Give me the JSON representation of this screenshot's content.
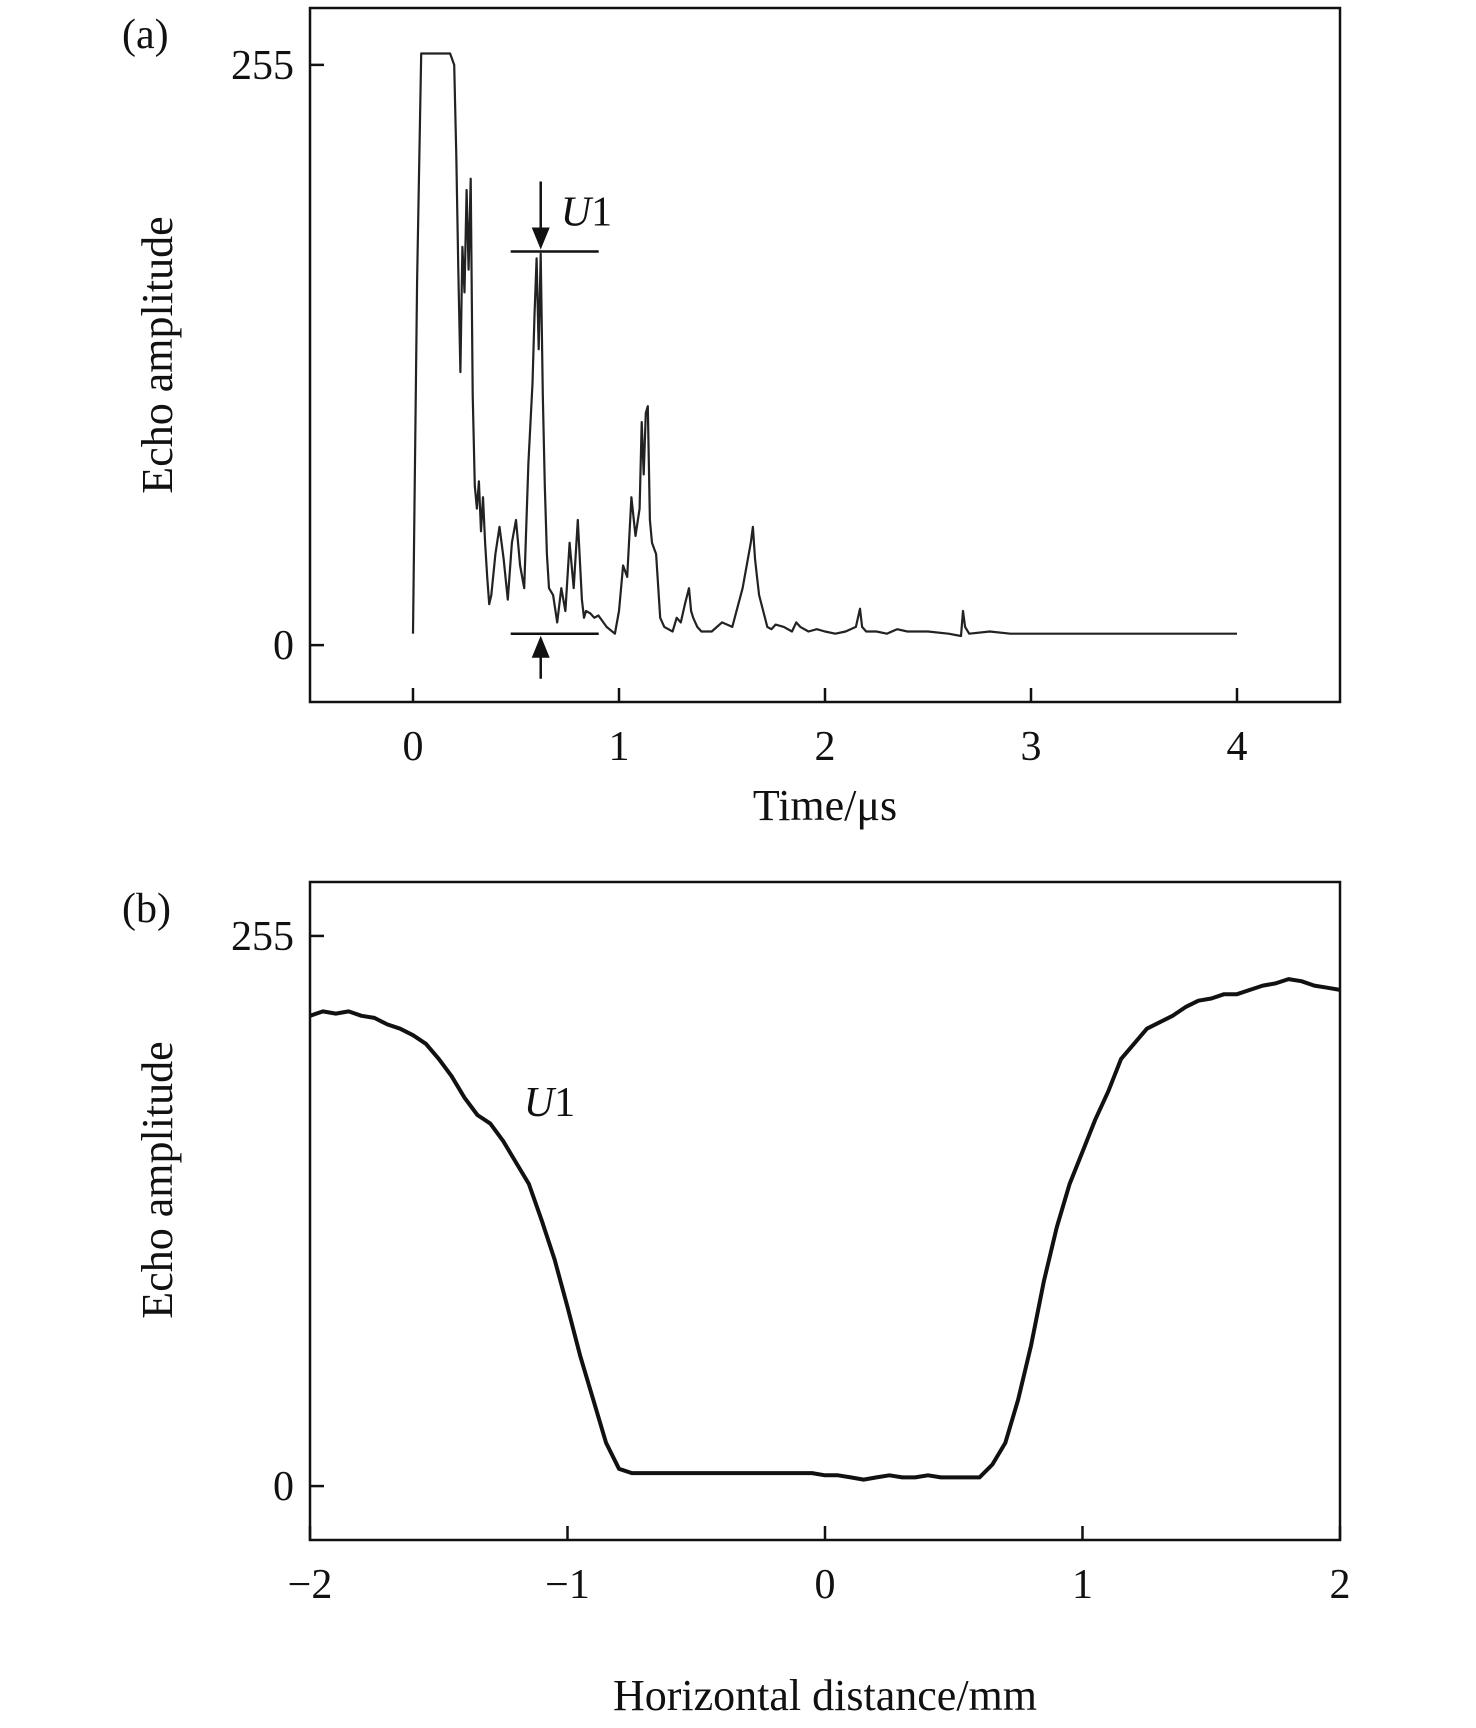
{
  "chart_data": [
    {
      "panel_label": "(a)",
      "type": "line",
      "xlabel": "Time/μs",
      "ylabel": "Echo amplitude",
      "xlim": [
        -0.5,
        4.5
      ],
      "ylim": [
        -25,
        280
      ],
      "xticks": [
        0,
        1,
        2,
        3,
        4
      ],
      "xtick_labels": [
        "0",
        "1",
        "2",
        "3",
        "4"
      ],
      "yticks": [
        0,
        255
      ],
      "ytick_labels": [
        "0",
        "255"
      ],
      "annotation": {
        "label_italic": "U",
        "label_rest": "1",
        "x": 0.62,
        "top": 173,
        "bottom": 5
      },
      "series": [
        {
          "x": [
            0.0,
            0.02,
            0.04,
            0.06,
            0.1,
            0.14,
            0.18,
            0.2,
            0.21,
            0.22,
            0.23,
            0.24,
            0.25,
            0.26,
            0.27,
            0.28,
            0.29,
            0.3,
            0.31,
            0.32,
            0.33,
            0.34,
            0.35,
            0.36,
            0.37,
            0.38,
            0.4,
            0.42,
            0.44,
            0.46,
            0.48,
            0.5,
            0.52,
            0.54,
            0.56,
            0.58,
            0.59,
            0.6,
            0.61,
            0.62,
            0.63,
            0.64,
            0.65,
            0.66,
            0.68,
            0.7,
            0.72,
            0.74,
            0.76,
            0.78,
            0.8,
            0.82,
            0.83,
            0.84,
            0.86,
            0.88,
            0.9,
            0.94,
            0.98,
            1.0,
            1.02,
            1.04,
            1.06,
            1.08,
            1.1,
            1.11,
            1.12,
            1.13,
            1.14,
            1.15,
            1.16,
            1.18,
            1.2,
            1.22,
            1.24,
            1.26,
            1.28,
            1.3,
            1.32,
            1.34,
            1.35,
            1.36,
            1.38,
            1.4,
            1.45,
            1.5,
            1.55,
            1.6,
            1.62,
            1.64,
            1.65,
            1.66,
            1.67,
            1.68,
            1.7,
            1.72,
            1.74,
            1.76,
            1.8,
            1.84,
            1.86,
            1.88,
            1.92,
            1.96,
            2.0,
            2.05,
            2.1,
            2.15,
            2.17,
            2.18,
            2.2,
            2.25,
            2.3,
            2.35,
            2.4,
            2.5,
            2.6,
            2.66,
            2.67,
            2.68,
            2.7,
            2.8,
            2.9,
            3.0,
            3.2,
            3.4,
            3.6,
            3.8,
            4.0
          ],
          "y": [
            5,
            160,
            260,
            260,
            260,
            260,
            260,
            255,
            215,
            165,
            120,
            175,
            155,
            200,
            165,
            205,
            110,
            70,
            60,
            72,
            50,
            65,
            45,
            30,
            18,
            22,
            40,
            52,
            38,
            20,
            45,
            55,
            35,
            25,
            80,
            115,
            145,
            170,
            130,
            172,
            110,
            70,
            40,
            25,
            22,
            10,
            25,
            15,
            45,
            25,
            55,
            20,
            12,
            15,
            14,
            12,
            13,
            8,
            5,
            15,
            35,
            30,
            65,
            48,
            60,
            98,
            75,
            102,
            105,
            55,
            45,
            40,
            12,
            8,
            7,
            6,
            12,
            10,
            18,
            25,
            15,
            12,
            8,
            6,
            6,
            10,
            8,
            25,
            35,
            45,
            52,
            38,
            30,
            22,
            15,
            8,
            7,
            9,
            8,
            6,
            10,
            8,
            6,
            7,
            6,
            5,
            6,
            8,
            16,
            8,
            6,
            6,
            5,
            7,
            6,
            6,
            5,
            4,
            15,
            8,
            5,
            6,
            5,
            5,
            5,
            5,
            5,
            5,
            5
          ]
        }
      ]
    },
    {
      "panel_label": "(b)",
      "type": "line",
      "xlabel": "Horizontal distance/mm",
      "ylabel": "Echo amplitude",
      "xlim": [
        -2,
        2
      ],
      "ylim": [
        -25,
        280
      ],
      "xticks": [
        -2,
        -1,
        0,
        1,
        2
      ],
      "xtick_labels": [
        "−2",
        "−1",
        "0",
        "1",
        "2"
      ],
      "yticks": [
        0,
        255
      ],
      "ytick_labels": [
        "0",
        "255"
      ],
      "annotation": {
        "label_italic": "U",
        "label_rest": "1",
        "x": -1.17,
        "y": 178
      },
      "series": [
        {
          "x": [
            -2.0,
            -1.95,
            -1.9,
            -1.85,
            -1.8,
            -1.75,
            -1.7,
            -1.65,
            -1.6,
            -1.55,
            -1.5,
            -1.45,
            -1.4,
            -1.35,
            -1.3,
            -1.25,
            -1.2,
            -1.15,
            -1.1,
            -1.05,
            -1.0,
            -0.95,
            -0.9,
            -0.85,
            -0.8,
            -0.75,
            -0.7,
            -0.65,
            -0.6,
            -0.55,
            -0.5,
            -0.45,
            -0.4,
            -0.35,
            -0.3,
            -0.25,
            -0.2,
            -0.15,
            -0.1,
            -0.05,
            0.0,
            0.05,
            0.1,
            0.15,
            0.2,
            0.25,
            0.3,
            0.35,
            0.4,
            0.45,
            0.5,
            0.55,
            0.6,
            0.65,
            0.7,
            0.75,
            0.8,
            0.85,
            0.9,
            0.95,
            1.0,
            1.05,
            1.1,
            1.15,
            1.2,
            1.25,
            1.3,
            1.35,
            1.4,
            1.45,
            1.5,
            1.55,
            1.6,
            1.65,
            1.7,
            1.75,
            1.8,
            1.85,
            1.9,
            1.95,
            2.0
          ],
          "y": [
            218,
            220,
            219,
            220,
            218,
            217,
            214,
            212,
            209,
            205,
            198,
            190,
            180,
            172,
            168,
            160,
            150,
            140,
            123,
            105,
            83,
            60,
            40,
            20,
            8,
            6,
            6,
            6,
            6,
            6,
            6,
            6,
            6,
            6,
            6,
            6,
            6,
            6,
            6,
            6,
            5,
            5,
            4,
            3,
            4,
            5,
            4,
            4,
            5,
            4,
            4,
            4,
            4,
            10,
            20,
            40,
            65,
            95,
            120,
            140,
            155,
            170,
            183,
            198,
            205,
            212,
            215,
            218,
            222,
            225,
            226,
            228,
            228,
            230,
            232,
            233,
            235,
            234,
            232,
            231,
            230
          ]
        }
      ]
    }
  ]
}
